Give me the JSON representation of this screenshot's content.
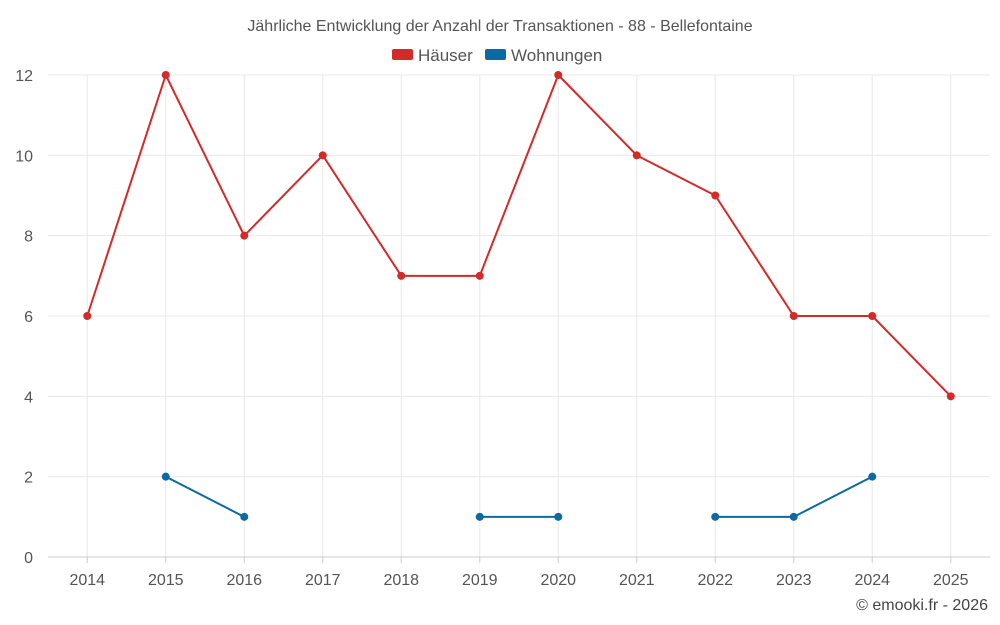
{
  "chart_data": {
    "type": "line",
    "title": "Jährliche Entwicklung der Anzahl der Transaktionen - 88 - Bellefontaine",
    "categories": [
      "2014",
      "2015",
      "2016",
      "2017",
      "2018",
      "2019",
      "2020",
      "2021",
      "2022",
      "2023",
      "2024",
      "2025"
    ],
    "series": [
      {
        "name": "Häuser",
        "color": "#d32a2a",
        "values": [
          6,
          12,
          8,
          10,
          7,
          7,
          12,
          10,
          9,
          6,
          6,
          4
        ]
      },
      {
        "name": "Wohnungen",
        "color": "#0b6aa2",
        "values": [
          null,
          2,
          1,
          null,
          null,
          1,
          1,
          null,
          1,
          1,
          2,
          null
        ]
      }
    ],
    "ylim": [
      0,
      12
    ],
    "yticks": [
      0,
      2,
      4,
      6,
      8,
      10,
      12
    ],
    "grid": true,
    "legend": "top-center",
    "xlabel": "",
    "ylabel": ""
  },
  "credit": "© emooki.fr - 2026"
}
